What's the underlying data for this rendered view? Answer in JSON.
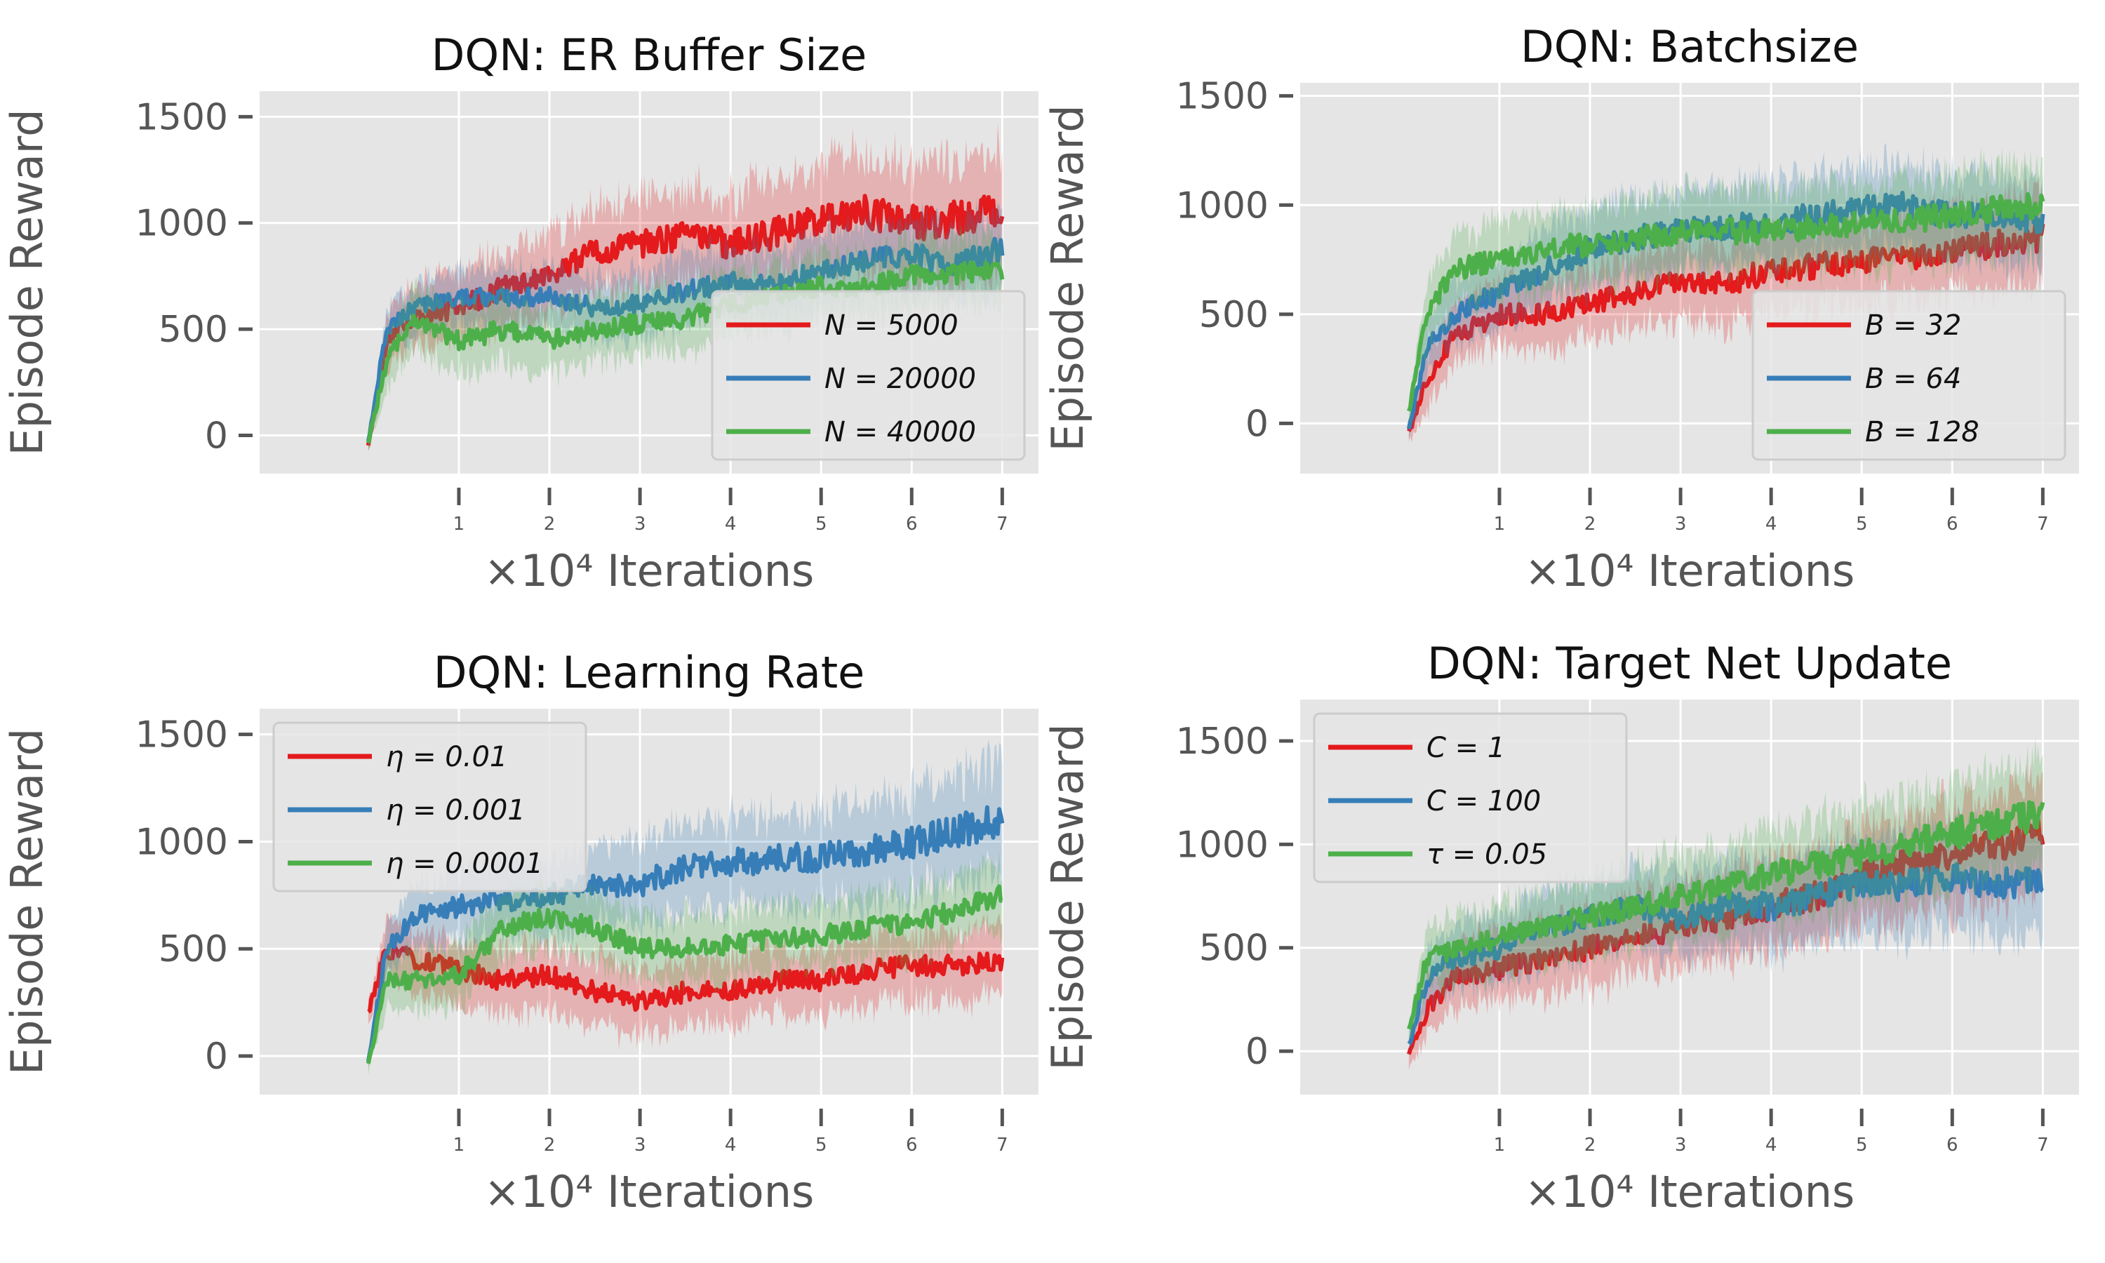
{
  "colors": {
    "red": "#e41a1c",
    "blue": "#377eb8",
    "green": "#4daf4a",
    "panel_bg": "#e5e5e5",
    "grid": "#ffffff"
  },
  "chart_data": [
    {
      "type": "line",
      "title": "DQN: ER Buffer Size",
      "ylabel": "Episode Reward",
      "xlabel": "×10⁴ Iterations",
      "xlim": [
        -1.2,
        7.4
      ],
      "ylim": [
        -180,
        1620
      ],
      "xticks": [
        1,
        2,
        3,
        4,
        5,
        6,
        7
      ],
      "yticks": [
        0,
        500,
        1000,
        1500
      ],
      "xtick_labels": [
        "1",
        "2",
        "3",
        "4",
        "5",
        "6",
        "7"
      ],
      "ytick_labels": [
        "0",
        "500",
        "1000",
        "1500"
      ],
      "legend": "lower-right",
      "grid": true,
      "series": [
        {
          "name": "N = 5000",
          "color": "red",
          "x": [
            0,
            0.2,
            0.5,
            1,
            1.5,
            2,
            2.5,
            3,
            3.5,
            4,
            4.5,
            5,
            5.5,
            6,
            6.5,
            7
          ],
          "values": [
            -50,
            450,
            560,
            600,
            700,
            750,
            870,
            900,
            940,
            900,
            950,
            1020,
            1050,
            1000,
            1020,
            1050
          ],
          "spread": [
            40,
            150,
            180,
            200,
            220,
            230,
            250,
            260,
            280,
            290,
            300,
            310,
            330,
            340,
            350,
            360
          ]
        },
        {
          "name": "N = 20000",
          "color": "blue",
          "x": [
            0,
            0.2,
            0.5,
            1,
            1.5,
            2,
            2.5,
            3,
            3.5,
            4,
            4.5,
            5,
            5.5,
            6,
            6.5,
            7
          ],
          "values": [
            -30,
            500,
            600,
            650,
            650,
            650,
            600,
            620,
            680,
            720,
            700,
            780,
            820,
            850,
            800,
            880
          ],
          "spread": [
            40,
            120,
            150,
            160,
            170,
            180,
            180,
            190,
            200,
            200,
            210,
            220,
            220,
            230,
            230,
            240
          ]
        },
        {
          "name": "N = 40000",
          "color": "green",
          "x": [
            0,
            0.2,
            0.5,
            1,
            1.5,
            2,
            2.5,
            3,
            3.5,
            4,
            4.5,
            5,
            5.5,
            6,
            6.5,
            7
          ],
          "values": [
            -40,
            350,
            550,
            450,
            500,
            450,
            500,
            530,
            550,
            620,
            650,
            700,
            700,
            750,
            760,
            780
          ],
          "spread": [
            40,
            150,
            170,
            200,
            200,
            190,
            190,
            190,
            190,
            190,
            190,
            190,
            190,
            200,
            200,
            200
          ]
        }
      ]
    },
    {
      "type": "line",
      "title": "DQN: Batchsize",
      "ylabel": "Episode Reward",
      "xlabel": "×10⁴ Iterations",
      "xlim": [
        -1.2,
        7.4
      ],
      "ylim": [
        -230,
        1560
      ],
      "xticks": [
        1,
        2,
        3,
        4,
        5,
        6,
        7
      ],
      "yticks": [
        0,
        500,
        1000,
        1500
      ],
      "xtick_labels": [
        "1",
        "2",
        "3",
        "4",
        "5",
        "6",
        "7"
      ],
      "ytick_labels": [
        "0",
        "500",
        "1000",
        "1500"
      ],
      "legend": "lower-right",
      "grid": true,
      "series": [
        {
          "name": "B = 32",
          "color": "red",
          "x": [
            0,
            0.2,
            0.5,
            1,
            1.5,
            2,
            2.5,
            3,
            3.5,
            4,
            4.5,
            5,
            5.5,
            6,
            6.5,
            7
          ],
          "values": [
            -40,
            200,
            400,
            500,
            500,
            550,
            600,
            650,
            640,
            700,
            720,
            750,
            760,
            800,
            820,
            850
          ],
          "spread": [
            60,
            150,
            170,
            190,
            200,
            200,
            210,
            220,
            230,
            230,
            240,
            240,
            250,
            250,
            260,
            260
          ]
        },
        {
          "name": "B = 64",
          "color": "blue",
          "x": [
            0,
            0.2,
            0.5,
            1,
            1.5,
            2,
            2.5,
            3,
            3.5,
            4,
            4.5,
            5,
            5.5,
            6,
            6.5,
            7
          ],
          "values": [
            -30,
            350,
            500,
            600,
            700,
            800,
            850,
            880,
            900,
            920,
            950,
            980,
            1000,
            950,
            950,
            920
          ],
          "spread": [
            50,
            160,
            190,
            200,
            210,
            220,
            220,
            230,
            230,
            230,
            240,
            240,
            240,
            250,
            250,
            250
          ]
        },
        {
          "name": "B = 128",
          "color": "green",
          "x": [
            0,
            0.2,
            0.5,
            1,
            1.5,
            2,
            2.5,
            3,
            3.5,
            4,
            4.5,
            5,
            5.5,
            6,
            6.5,
            7
          ],
          "values": [
            50,
            500,
            700,
            750,
            800,
            820,
            850,
            870,
            880,
            880,
            900,
            920,
            930,
            950,
            980,
            1000
          ],
          "spread": [
            60,
            170,
            200,
            210,
            220,
            220,
            220,
            220,
            230,
            230,
            230,
            230,
            240,
            240,
            250,
            250
          ]
        }
      ]
    },
    {
      "type": "line",
      "title": "DQN: Learning Rate",
      "ylabel": "Episode Reward",
      "xlabel": "×10⁴ Iterations",
      "xlim": [
        -1.2,
        7.4
      ],
      "ylim": [
        -180,
        1620
      ],
      "xticks": [
        1,
        2,
        3,
        4,
        5,
        6,
        7
      ],
      "yticks": [
        0,
        500,
        1000,
        1500
      ],
      "xtick_labels": [
        "1",
        "2",
        "3",
        "4",
        "5",
        "6",
        "7"
      ],
      "ytick_labels": [
        "0",
        "500",
        "1000",
        "1500"
      ],
      "legend": "top-left",
      "grid": true,
      "series": [
        {
          "name": "η = 0.01",
          "color": "red",
          "x": [
            0,
            0.2,
            0.5,
            1,
            1.5,
            2,
            2.5,
            3,
            3.5,
            4,
            4.5,
            5,
            5.5,
            6,
            6.5,
            7
          ],
          "values": [
            200,
            500,
            450,
            400,
            350,
            380,
            300,
            250,
            300,
            300,
            350,
            350,
            400,
            420,
            420,
            450
          ],
          "spread": [
            80,
            160,
            180,
            190,
            190,
            190,
            190,
            190,
            190,
            190,
            190,
            190,
            200,
            200,
            200,
            200
          ]
        },
        {
          "name": "η = 0.001",
          "color": "blue",
          "x": [
            0,
            0.2,
            0.5,
            1,
            1.5,
            2,
            2.5,
            3,
            3.5,
            4,
            4.5,
            5,
            5.5,
            6,
            6.5,
            7
          ],
          "values": [
            -30,
            500,
            650,
            700,
            720,
            750,
            800,
            800,
            880,
            900,
            920,
            930,
            950,
            1000,
            1050,
            1100
          ],
          "spread": [
            50,
            150,
            180,
            200,
            210,
            220,
            230,
            240,
            250,
            260,
            270,
            280,
            300,
            310,
            320,
            330
          ]
        },
        {
          "name": "η = 0.0001",
          "color": "green",
          "x": [
            0,
            0.2,
            0.5,
            1,
            1.5,
            2,
            2.5,
            3,
            3.5,
            4,
            4.5,
            5,
            5.5,
            6,
            6.5,
            7
          ],
          "values": [
            -40,
            350,
            350,
            380,
            600,
            650,
            600,
            500,
            500,
            520,
            550,
            560,
            600,
            620,
            680,
            750
          ],
          "spread": [
            40,
            150,
            170,
            180,
            190,
            190,
            190,
            190,
            190,
            190,
            190,
            190,
            190,
            190,
            190,
            190
          ]
        }
      ]
    },
    {
      "type": "line",
      "title": "DQN: Target Net Update",
      "ylabel": "Episode Reward",
      "xlabel": "×10⁴ Iterations",
      "xlim": [
        -1.2,
        7.4
      ],
      "ylim": [
        -210,
        1700
      ],
      "xticks": [
        1,
        2,
        3,
        4,
        5,
        6,
        7
      ],
      "yticks": [
        0,
        500,
        1000,
        1500
      ],
      "xtick_labels": [
        "1",
        "2",
        "3",
        "4",
        "5",
        "6",
        "7"
      ],
      "ytick_labels": [
        "0",
        "500",
        "1000",
        "1500"
      ],
      "legend": "top-left",
      "grid": true,
      "series": [
        {
          "name": "C = 1",
          "color": "red",
          "x": [
            0,
            0.2,
            0.5,
            1,
            1.5,
            2,
            2.5,
            3,
            3.5,
            4,
            4.5,
            5,
            5.5,
            6,
            6.5,
            7
          ],
          "values": [
            -20,
            200,
            350,
            400,
            450,
            500,
            550,
            600,
            650,
            700,
            750,
            850,
            900,
            950,
            1000,
            1050
          ],
          "spread": [
            60,
            160,
            190,
            210,
            220,
            230,
            240,
            250,
            260,
            270,
            280,
            290,
            300,
            310,
            320,
            330
          ]
        },
        {
          "name": "C = 100",
          "color": "blue",
          "x": [
            0,
            0.2,
            0.5,
            1,
            1.5,
            2,
            2.5,
            3,
            3.5,
            4,
            4.5,
            5,
            5.5,
            6,
            6.5,
            7
          ],
          "values": [
            30,
            350,
            450,
            500,
            600,
            650,
            700,
            650,
            700,
            700,
            750,
            800,
            800,
            850,
            800,
            850
          ],
          "spread": [
            60,
            160,
            190,
            210,
            220,
            230,
            240,
            250,
            260,
            270,
            280,
            290,
            300,
            300,
            310,
            310
          ]
        },
        {
          "name": "τ = 0.05",
          "color": "green",
          "x": [
            0,
            0.2,
            0.5,
            1,
            1.5,
            2,
            2.5,
            3,
            3.5,
            4,
            4.5,
            5,
            5.5,
            6,
            6.5,
            7
          ],
          "values": [
            100,
            450,
            500,
            550,
            600,
            650,
            700,
            750,
            800,
            850,
            900,
            950,
            1000,
            1050,
            1100,
            1150
          ],
          "spread": [
            60,
            170,
            200,
            210,
            220,
            230,
            240,
            250,
            260,
            270,
            280,
            290,
            300,
            310,
            320,
            330
          ]
        }
      ]
    }
  ]
}
